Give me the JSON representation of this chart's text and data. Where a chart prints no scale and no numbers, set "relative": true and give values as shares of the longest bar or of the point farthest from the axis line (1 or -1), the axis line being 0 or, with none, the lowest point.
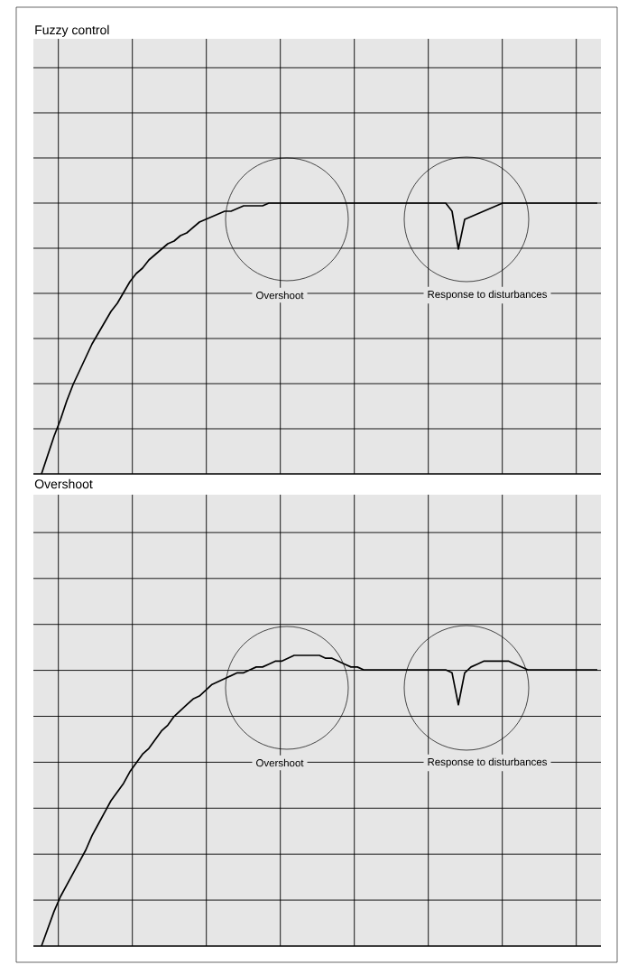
{
  "chart_data": [
    {
      "type": "line",
      "title": "Fuzzy control",
      "relative": true,
      "grid": true,
      "categories": [
        null,
        null,
        null,
        null,
        null,
        null,
        null,
        null,
        null,
        null,
        null,
        null,
        null,
        null,
        null,
        null,
        null,
        null,
        null,
        null,
        null,
        null,
        null,
        null,
        null,
        null,
        null,
        null,
        null,
        null,
        null,
        null,
        null,
        null,
        null,
        null,
        null,
        null,
        null,
        null,
        null,
        null,
        null,
        null,
        null,
        null,
        null,
        null,
        null,
        null,
        null,
        null,
        null,
        null,
        null,
        null,
        null,
        null,
        null,
        null,
        null,
        null,
        null,
        null,
        null,
        null,
        null,
        null,
        null,
        null,
        null,
        null,
        null,
        null,
        null,
        null,
        null,
        null,
        null,
        null,
        null,
        null,
        null,
        null,
        null,
        null,
        null,
        null,
        null
      ],
      "series": [
        {
          "color": "#000000",
          "values": [
            0,
            0.07,
            0.14,
            0.2,
            0.27,
            0.33,
            0.38,
            0.43,
            0.48,
            0.52,
            0.56,
            0.6,
            0.63,
            0.67,
            0.71,
            0.74,
            0.76,
            0.79,
            0.81,
            0.83,
            0.85,
            0.86,
            0.88,
            0.89,
            0.91,
            0.93,
            0.94,
            0.95,
            0.96,
            0.97,
            0.97,
            0.98,
            0.99,
            0.99,
            0.99,
            0.99,
            1,
            1,
            1,
            1,
            1,
            1,
            1,
            1,
            1,
            1,
            1,
            1,
            1,
            1,
            1,
            1,
            1,
            1,
            1,
            1,
            1,
            1,
            1,
            1,
            1,
            1,
            1,
            1,
            1,
            0.97,
            0.83,
            0.94,
            0.95,
            0.96,
            0.97,
            0.98,
            0.99,
            1,
            1,
            1,
            1,
            1,
            1,
            1,
            1,
            1,
            1,
            1,
            1,
            1,
            1,
            1,
            1
          ]
        }
      ],
      "annotations": [
        "Overshoot",
        "Response to disturbances"
      ]
    },
    {
      "type": "line",
      "title": "Overshoot",
      "relative": true,
      "grid": true,
      "categories": [
        null,
        null,
        null,
        null,
        null,
        null,
        null,
        null,
        null,
        null,
        null,
        null,
        null,
        null,
        null,
        null,
        null,
        null,
        null,
        null,
        null,
        null,
        null,
        null,
        null,
        null,
        null,
        null,
        null,
        null,
        null,
        null,
        null,
        null,
        null,
        null,
        null,
        null,
        null,
        null,
        null,
        null,
        null,
        null,
        null,
        null,
        null,
        null,
        null,
        null,
        null,
        null,
        null,
        null,
        null,
        null,
        null,
        null,
        null,
        null,
        null,
        null,
        null,
        null,
        null,
        null,
        null,
        null,
        null,
        null,
        null,
        null,
        null,
        null,
        null,
        null,
        null,
        null,
        null,
        null,
        null,
        null,
        null,
        null,
        null,
        null,
        null,
        null,
        null
      ],
      "series": [
        {
          "color": "#000000",
          "values": [
            0,
            0.06,
            0.12,
            0.17,
            0.21,
            0.25,
            0.29,
            0.33,
            0.38,
            0.42,
            0.46,
            0.5,
            0.53,
            0.56,
            0.6,
            0.63,
            0.66,
            0.68,
            0.71,
            0.74,
            0.76,
            0.79,
            0.81,
            0.83,
            0.85,
            0.86,
            0.88,
            0.9,
            0.91,
            0.92,
            0.93,
            0.94,
            0.94,
            0.95,
            0.96,
            0.96,
            0.97,
            0.98,
            0.98,
            0.99,
            1,
            1,
            1,
            1,
            1,
            0.99,
            0.99,
            0.98,
            0.97,
            0.96,
            0.96,
            0.95,
            0.95,
            0.95,
            0.95,
            0.95,
            0.95,
            0.95,
            0.95,
            0.95,
            0.95,
            0.95,
            0.95,
            0.95,
            0.95,
            0.94,
            0.83,
            0.94,
            0.96,
            0.97,
            0.98,
            0.98,
            0.98,
            0.98,
            0.98,
            0.97,
            0.96,
            0.95,
            0.95,
            0.95,
            0.95,
            0.95,
            0.95,
            0.95,
            0.95,
            0.95,
            0.95,
            0.95,
            0.95
          ]
        }
      ],
      "annotations": [
        "Overshoot",
        "Response to disturbances"
      ]
    }
  ]
}
